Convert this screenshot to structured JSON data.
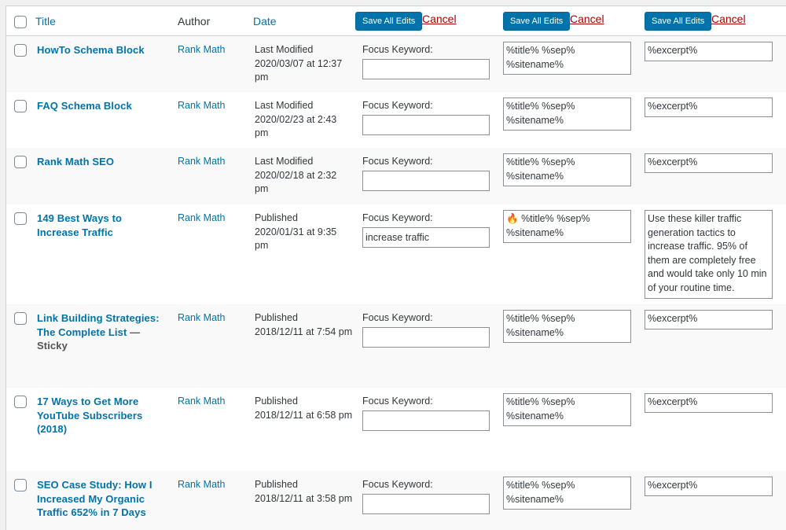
{
  "header": {
    "title": "Title",
    "author": "Author",
    "date": "Date",
    "save_label": "Save All Edits",
    "cancel_label": "Cancel"
  },
  "focus_keyword_label": "Focus Keyword:",
  "rows": [
    {
      "title": "HowTo Schema Block",
      "suffix": "",
      "author": "Rank Math",
      "date_status": "Last Modified",
      "date": "2020/03/07 at 12:37 pm",
      "focus_keyword": "",
      "seo_title": "%title% %sep% %sitename%",
      "seo_icon": "",
      "description": "%excerpt%"
    },
    {
      "title": "FAQ Schema Block",
      "suffix": "",
      "author": "Rank Math",
      "date_status": "Last Modified",
      "date": "2020/02/23 at 2:43 pm",
      "focus_keyword": "",
      "seo_title": "%title% %sep% %sitename%",
      "seo_icon": "",
      "description": "%excerpt%"
    },
    {
      "title": "Rank Math SEO",
      "suffix": "",
      "author": "Rank Math",
      "date_status": "Last Modified",
      "date": "2020/02/18 at 2:32 pm",
      "focus_keyword": "",
      "seo_title": "%title% %sep% %sitename%",
      "seo_icon": "",
      "description": "%excerpt%"
    },
    {
      "title": "149 Best Ways to Increase Traffic",
      "suffix": "",
      "author": "Rank Math",
      "date_status": "Published",
      "date": "2020/01/31 at 9:35 pm",
      "focus_keyword": "increase traffic",
      "seo_title": "%title% %sep% %sitename%",
      "seo_icon": "🔥",
      "description": "Use these killer traffic generation tactics to increase traffic. 95% of them are completely free and would take only 10 min of your routine time."
    },
    {
      "title": "Link Building Strategies: The Complete List",
      "suffix": " — Sticky",
      "author": "Rank Math",
      "date_status": "Published",
      "date": "2018/12/11 at 7:54 pm",
      "focus_keyword": "",
      "seo_title": "%title% %sep% %sitename%",
      "seo_icon": "",
      "description": "%excerpt%"
    },
    {
      "title": "17 Ways to Get More YouTube Subscribers (2018)",
      "suffix": "",
      "author": "Rank Math",
      "date_status": "Published",
      "date": "2018/12/11 at 6:58 pm",
      "focus_keyword": "",
      "seo_title": "%title% %sep% %sitename%",
      "seo_icon": "",
      "description": "%excerpt%"
    },
    {
      "title": "SEO Case Study: How I Increased My Organic Traffic 652% in 7 Days",
      "suffix": "",
      "author": "Rank Math",
      "date_status": "Published",
      "date": "2018/12/11 at 3:58 pm",
      "focus_keyword": "",
      "seo_title": "%title% %sep% %sitename%",
      "seo_icon": "",
      "description": "%excerpt%"
    }
  ]
}
